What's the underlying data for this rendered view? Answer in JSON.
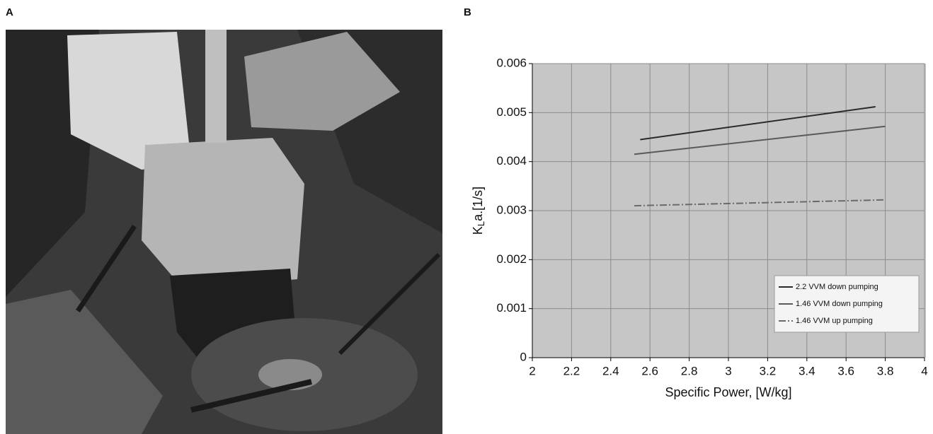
{
  "panel_labels": [
    "A",
    "B"
  ],
  "chart_data": {
    "type": "line",
    "x_label": "Specific Power,  [W/kg]",
    "y_label_parts": [
      "K",
      "L",
      "a.[1/s]"
    ],
    "xlim": [
      2,
      4
    ],
    "xticks": [
      2,
      2.2,
      2.4,
      2.6,
      2.8,
      3,
      3.2,
      3.4,
      3.6,
      3.8,
      4
    ],
    "ylim": [
      0,
      0.006
    ],
    "yticks": [
      0,
      0.001,
      0.002,
      0.003,
      0.004,
      0.005,
      0.006
    ],
    "grid": true,
    "legend": "lower right",
    "series": [
      {
        "name": "2.2 VVM down pumping",
        "color": "#2a2a2a",
        "dash": "none",
        "x": [
          2.55,
          3.75
        ],
        "values": [
          0.00445,
          0.00512
        ]
      },
      {
        "name": "1.46 VVM down pumping",
        "color": "#5a5a5a",
        "dash": "none",
        "x": [
          2.52,
          3.8
        ],
        "values": [
          0.00415,
          0.00472
        ]
      },
      {
        "name": "1.46 VVM up pumping",
        "color": "#6a6a6a",
        "dash": "10,3,2,3",
        "x": [
          2.52,
          3.8
        ],
        "values": [
          0.0031,
          0.00322
        ]
      }
    ]
  }
}
